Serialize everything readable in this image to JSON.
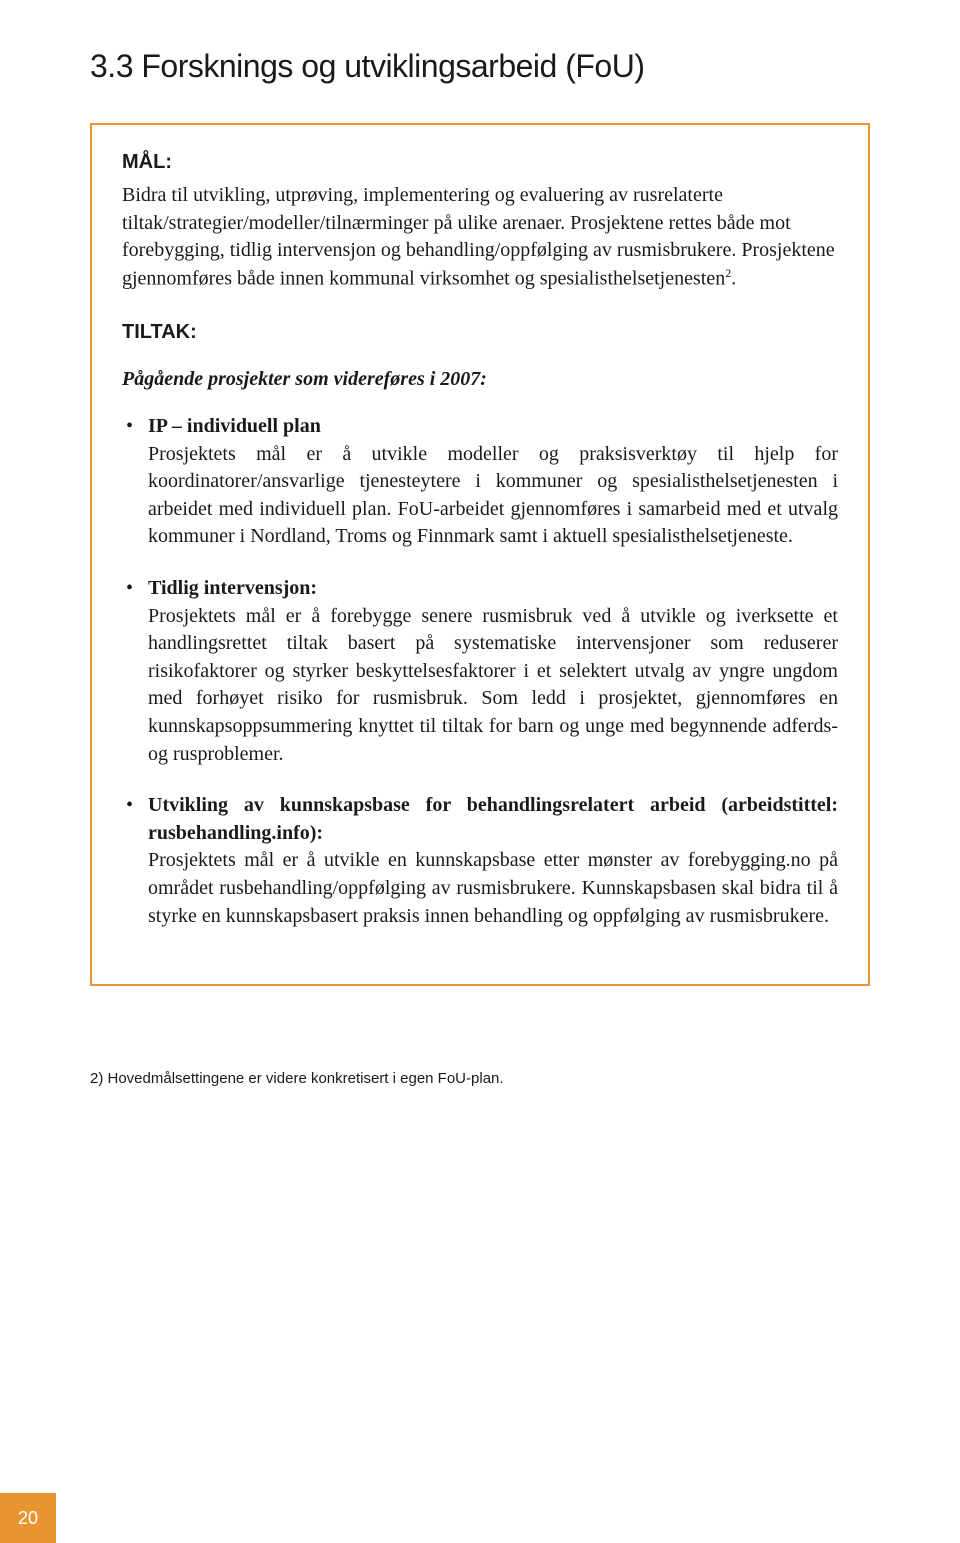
{
  "section_heading": "3.3 Forsknings og utviklingsarbeid (FoU)",
  "mal": {
    "label": "MÅL:",
    "body_part1": "Bidra til utvikling, utprøving, implementering og evaluering av rusrelaterte tiltak/strategier/modeller/tilnærminger på ulike arenaer. Prosjektene rettes både mot forebygging, tidlig intervensjon og behandling/oppfølging av rusmisbrukere. Prosjektene gjennomføres både innen kommunal virksomhet og spesialisthelsetjenesten",
    "sup": "2",
    "body_part1_end": "."
  },
  "tiltak_label": "TILTAK:",
  "subheading": "Pågående prosjekter som videreføres i 2007:",
  "items": [
    {
      "title": "IP – individuell plan",
      "body": "Prosjektets mål er å utvikle modeller og praksisverktøy til hjelp for koordinatorer/ansvarlige tjenesteytere i kommuner og spesialisthelsetjenesten i arbeidet med individuell plan. FoU-arbeidet gjennomføres i samarbeid med et utvalg kommuner i Nordland, Troms og Finnmark  samt i aktuell spesialisthelsetjeneste."
    },
    {
      "title": "Tidlig intervensjon:",
      "body": "Prosjektets mål er å forebygge senere rusmisbruk ved å utvikle og iverksette et handlingsrettet tiltak basert på systematiske intervensjoner som reduserer risikofaktorer og styrker beskyttelsesfaktorer i et selektert utvalg av yngre ungdom med forhøyet risiko for rusmisbruk. Som ledd i prosjektet, gjennomføres en kunnskapsoppsummering knyttet til tiltak for barn og unge med begynnende adferds- og rusproblemer."
    },
    {
      "title": "Utvikling av kunnskapsbase for behandlingsrelatert arbeid (arbeidstittel: rusbehandling.info):",
      "body": "Prosjektets mål er å utvikle en kunnskapsbase etter mønster av forebygging.no på området rusbehandling/oppfølging av rusmisbrukere. Kunnskapsbasen skal bidra til å styrke en kunnskapsbasert praksis innen behandling og oppfølging av rusmisbrukere."
    }
  ],
  "footnote": "2)  Hovedmålsettingene er videre konkretisert i egen FoU-plan.",
  "page_number": "20",
  "colors": {
    "accent": "#e8952f",
    "text": "#1a1a1a",
    "background": "#ffffff"
  }
}
